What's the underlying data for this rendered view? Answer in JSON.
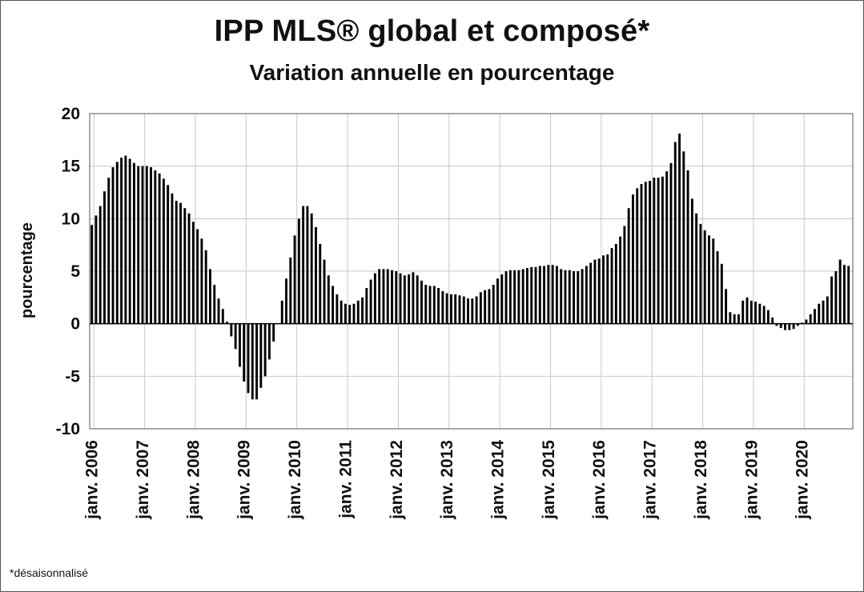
{
  "chart_data": {
    "type": "bar",
    "title": "IPP MLS® global et composé*",
    "subtitle": "Variation annuelle en pourcentage",
    "ylabel": "pourcentage",
    "xlabel": "",
    "ylim": [
      -10,
      20
    ],
    "yticks": [
      "20",
      "15",
      "10",
      "5",
      "0",
      "-5",
      "-10"
    ],
    "xtick_labels": [
      "janv. 2006",
      "janv. 2007",
      "janv. 2008",
      "janv. 2009",
      "janv. 2010",
      "janv. 2011",
      "janv. 2012",
      "janv. 2013",
      "janv. 2014",
      "janv. 2015",
      "janv. 2016",
      "janv. 2017",
      "janv. 2018",
      "janv. 2019",
      "janv. 2020"
    ],
    "start": "2006-01",
    "end": "2020-05",
    "grid": true,
    "legend": "none",
    "bar_color": "#000000",
    "values": [
      9.4,
      10.3,
      11.2,
      12.6,
      13.9,
      14.9,
      15.4,
      15.8,
      16.0,
      15.7,
      15.3,
      15.0,
      15.0,
      15.0,
      14.9,
      14.6,
      14.3,
      13.8,
      13.2,
      12.4,
      11.7,
      11.5,
      11.0,
      10.5,
      9.7,
      9.0,
      8.1,
      7.0,
      5.2,
      3.7,
      2.4,
      1.4,
      0.2,
      -1.2,
      -2.4,
      -4.1,
      -5.5,
      -6.6,
      -7.2,
      -7.2,
      -6.1,
      -5.0,
      -3.4,
      -1.7,
      0.0,
      2.2,
      4.3,
      6.3,
      8.4,
      10.0,
      11.2,
      11.2,
      10.5,
      9.2,
      7.6,
      6.1,
      4.6,
      3.6,
      2.8,
      2.2,
      1.9,
      1.8,
      1.9,
      2.2,
      2.5,
      3.4,
      4.2,
      4.8,
      5.2,
      5.2,
      5.2,
      5.1,
      5.0,
      4.8,
      4.6,
      4.7,
      4.9,
      4.6,
      4.1,
      3.7,
      3.6,
      3.6,
      3.4,
      3.1,
      2.9,
      2.8,
      2.8,
      2.7,
      2.6,
      2.4,
      2.4,
      2.6,
      3.0,
      3.2,
      3.3,
      3.7,
      4.3,
      4.7,
      5.0,
      5.1,
      5.1,
      5.1,
      5.2,
      5.3,
      5.4,
      5.4,
      5.5,
      5.5,
      5.6,
      5.6,
      5.5,
      5.2,
      5.1,
      5.1,
      5.0,
      5.0,
      5.2,
      5.5,
      5.8,
      6.1,
      6.2,
      6.5,
      6.6,
      7.2,
      7.6,
      8.3,
      9.3,
      11.0,
      12.3,
      12.9,
      13.3,
      13.5,
      13.6,
      13.9,
      13.9,
      14.0,
      14.5,
      15.3,
      17.3,
      18.1,
      16.4,
      14.6,
      11.9,
      10.5,
      9.5,
      8.9,
      8.4,
      8.1,
      6.9,
      5.7,
      3.3,
      1.1,
      0.9,
      0.9,
      2.2,
      2.5,
      2.2,
      2.1,
      1.9,
      1.7,
      1.3,
      0.6,
      -0.2,
      -0.4,
      -0.6,
      -0.6,
      -0.5,
      -0.2,
      0.1,
      0.4,
      0.9,
      1.4,
      1.9,
      2.2,
      2.6,
      4.5,
      5.0,
      6.1,
      5.6,
      5.5
    ]
  },
  "footnote": "*désaisonnalisé"
}
